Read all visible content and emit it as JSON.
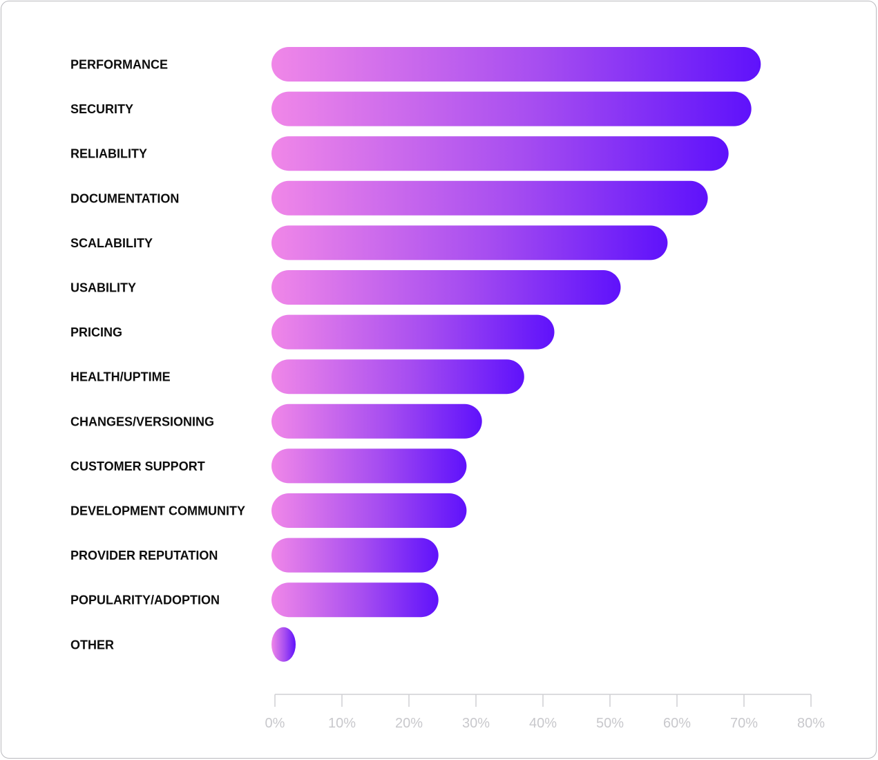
{
  "colors": {
    "bar_start": "#f087e8",
    "bar_mid": "#a64df0",
    "bar_end": "#5f12fb",
    "axis": "#cfcfd3",
    "tick_text": "#c8c8cc",
    "label_text": "#0d0d0d",
    "card_border": "#b9b9bd"
  },
  "chart_data": {
    "type": "bar",
    "orientation": "horizontal",
    "categories": [
      "PERFORMANCE",
      "SECURITY",
      "RELIABILITY",
      "DOCUMENTATION",
      "SCALABILITY",
      "USABILITY",
      "PRICING",
      "HEALTH/UPTIME",
      "CHANGES/VERSIONING",
      "CUSTOMER SUPPORT",
      "DEVELOPMENT COMMUNITY",
      "PROVIDER REPUTATION",
      "POPULARITY/ADOPTION",
      "OTHER"
    ],
    "values": [
      72.5,
      71.1,
      67.7,
      64.6,
      58.6,
      51.6,
      41.7,
      37.2,
      30.9,
      28.6,
      28.6,
      24.4,
      24.4,
      1.8
    ],
    "value_unit": "%",
    "xlim": [
      0,
      80
    ],
    "ticks": [
      0,
      10,
      20,
      30,
      40,
      50,
      60,
      70,
      80
    ],
    "tick_labels": [
      "0%",
      "10%",
      "20%",
      "30%",
      "40%",
      "50%",
      "60%",
      "70%",
      "80%"
    ],
    "title": "",
    "xlabel": "",
    "ylabel": "",
    "legend": "none",
    "grid": false
  }
}
